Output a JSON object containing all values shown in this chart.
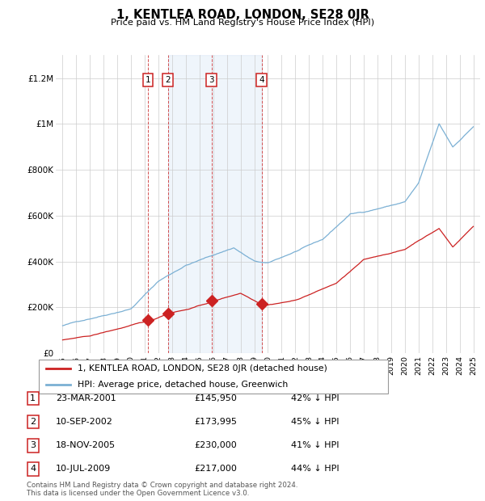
{
  "title": "1, KENTLEA ROAD, LONDON, SE28 0JR",
  "subtitle": "Price paid vs. HM Land Registry's House Price Index (HPI)",
  "hpi_label": "HPI: Average price, detached house, Greenwich",
  "property_label": "1, KENTLEA ROAD, LONDON, SE28 0JR (detached house)",
  "footer_line1": "Contains HM Land Registry data © Crown copyright and database right 2024.",
  "footer_line2": "This data is licensed under the Open Government Licence v3.0.",
  "property_color": "#cc2222",
  "hpi_color": "#7bb0d4",
  "highlight_bg": "#ddeeff",
  "highlight_span": [
    2002.69,
    2009.53
  ],
  "transactions": [
    {
      "num": 1,
      "date": "23-MAR-2001",
      "price": 145950,
      "pct": "42%",
      "x": 2001.22
    },
    {
      "num": 2,
      "date": "10-SEP-2002",
      "price": 173995,
      "pct": "45%",
      "x": 2002.69
    },
    {
      "num": 3,
      "date": "18-NOV-2005",
      "price": 230000,
      "pct": "41%",
      "x": 2005.88
    },
    {
      "num": 4,
      "date": "10-JUL-2009",
      "price": 217000,
      "pct": "44%",
      "x": 2009.53
    }
  ],
  "ylim": [
    0,
    1300000
  ],
  "xlim": [
    1994.5,
    2025.5
  ],
  "yticks": [
    0,
    200000,
    400000,
    600000,
    800000,
    1000000,
    1200000
  ],
  "ytick_labels": [
    "£0",
    "£200K",
    "£400K",
    "£600K",
    "£800K",
    "£1M",
    "£1.2M"
  ],
  "xticks": [
    1995,
    1996,
    1997,
    1998,
    1999,
    2000,
    2001,
    2002,
    2003,
    2004,
    2005,
    2006,
    2007,
    2008,
    2009,
    2010,
    2011,
    2012,
    2013,
    2014,
    2015,
    2016,
    2017,
    2018,
    2019,
    2020,
    2021,
    2022,
    2023,
    2024,
    2025
  ]
}
